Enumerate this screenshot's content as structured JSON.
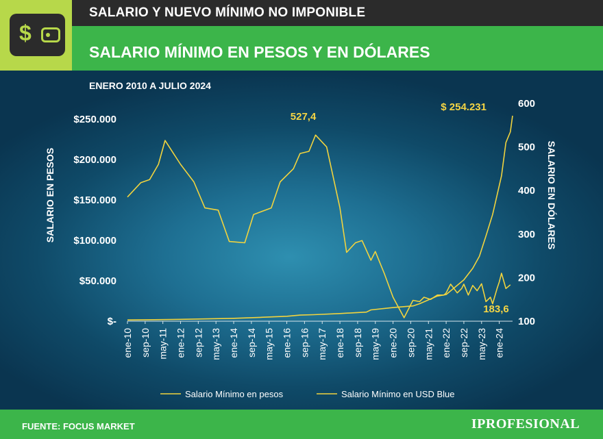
{
  "header": {
    "top_title": "SALARIO Y NUEVO MÍNIMO NO IMPONIBLE",
    "main_title": "SALARIO MÍNIMO EN PESOS Y EN DÓLARES",
    "subtitle": "ENERO 2010 A JULIO 2024",
    "icon": "wallet-dollar-icon",
    "icon_symbol": "$"
  },
  "footer": {
    "source": "FUENTE: FOCUS MARKET",
    "brand": "IPROFESIONAL"
  },
  "colors": {
    "line": "#f2d43e",
    "green_bar": "#3cb54a",
    "dark_bar": "#2b2b2b",
    "logo_bg": "#b7d84a"
  },
  "chart_data": {
    "type": "line",
    "x_tick_labels": [
      "ene-10",
      "sep-10",
      "may-11",
      "ene-12",
      "sep-12",
      "may-13",
      "ene-14",
      "sep-14",
      "may-15",
      "ene-16",
      "sep-16",
      "may-17",
      "ene-18",
      "sep-18",
      "may-19",
      "ene-20",
      "sep-20",
      "may-21",
      "ene-22",
      "sep-22",
      "may-23",
      "ene-24"
    ],
    "left_axis": {
      "label": "SALARIO EN PESOS",
      "ylim": [
        0,
        250000
      ],
      "tick_values": [
        0,
        50000,
        100000,
        150000,
        200000,
        250000
      ],
      "tick_labels": [
        "$-",
        "$50.000",
        "$100.000",
        "$150.000",
        "$200.000",
        "$250.000"
      ]
    },
    "right_axis": {
      "label": "SALARIO EN DÓLARES",
      "ylim": [
        100,
        600
      ],
      "tick_values": [
        100,
        200,
        300,
        400,
        500,
        600
      ],
      "tick_labels": [
        "100",
        "200",
        "300",
        "400",
        "500",
        "600"
      ]
    },
    "series": [
      {
        "name": "Salario Mínimo en pesos",
        "axis": "left",
        "points": [
          [
            "2010-01",
            1500
          ],
          [
            "2011-01",
            1840
          ],
          [
            "2012-01",
            2300
          ],
          [
            "2013-01",
            2875
          ],
          [
            "2014-01",
            3600
          ],
          [
            "2015-01",
            4716
          ],
          [
            "2016-01",
            6060
          ],
          [
            "2016-07",
            7560
          ],
          [
            "2017-01",
            8060
          ],
          [
            "2018-01",
            9500
          ],
          [
            "2019-01",
            11300
          ],
          [
            "2019-03",
            14000
          ],
          [
            "2020-01",
            16875
          ],
          [
            "2020-10",
            18900
          ],
          [
            "2021-01",
            21600
          ],
          [
            "2021-09",
            31104
          ],
          [
            "2022-01",
            33000
          ],
          [
            "2022-09",
            51200
          ],
          [
            "2023-01",
            65427
          ],
          [
            "2023-04",
            80340
          ],
          [
            "2023-07",
            105500
          ],
          [
            "2023-10",
            132000
          ],
          [
            "2023-12",
            156000
          ],
          [
            "2024-02",
            180000
          ],
          [
            "2024-04",
            221000
          ],
          [
            "2024-06",
            234315
          ],
          [
            "2024-07",
            254231
          ]
        ]
      },
      {
        "name": "Salario Mínimo en USD Blue",
        "axis": "right",
        "points": [
          [
            "2010-01",
            385
          ],
          [
            "2010-07",
            418
          ],
          [
            "2010-11",
            425
          ],
          [
            "2011-03",
            460
          ],
          [
            "2011-06",
            515
          ],
          [
            "2012-01",
            460
          ],
          [
            "2012-07",
            420
          ],
          [
            "2012-12",
            360
          ],
          [
            "2013-06",
            355
          ],
          [
            "2013-11",
            283
          ],
          [
            "2014-06",
            280
          ],
          [
            "2014-10",
            345
          ],
          [
            "2015-06",
            360
          ],
          [
            "2015-10",
            420
          ],
          [
            "2016-04",
            450
          ],
          [
            "2016-07",
            485
          ],
          [
            "2016-11",
            490
          ],
          [
            "2017-02",
            527.4
          ],
          [
            "2017-07",
            500
          ],
          [
            "2018-01",
            360
          ],
          [
            "2018-04",
            258
          ],
          [
            "2018-08",
            280
          ],
          [
            "2018-11",
            285
          ],
          [
            "2019-03",
            240
          ],
          [
            "2019-05",
            260
          ],
          [
            "2019-09",
            210
          ],
          [
            "2020-01",
            155
          ],
          [
            "2020-06",
            108
          ],
          [
            "2020-10",
            148
          ],
          [
            "2021-01",
            145
          ],
          [
            "2021-03",
            155
          ],
          [
            "2021-06",
            150
          ],
          [
            "2021-09",
            160
          ],
          [
            "2021-12",
            160
          ],
          [
            "2022-01",
            165
          ],
          [
            "2022-03",
            185
          ],
          [
            "2022-06",
            165
          ],
          [
            "2022-08",
            175
          ],
          [
            "2022-09",
            185
          ],
          [
            "2022-11",
            160
          ],
          [
            "2023-01",
            182
          ],
          [
            "2023-03",
            170
          ],
          [
            "2023-05",
            186
          ],
          [
            "2023-07",
            145
          ],
          [
            "2023-09",
            155
          ],
          [
            "2023-10",
            140
          ],
          [
            "2023-12",
            175
          ],
          [
            "2024-01",
            190
          ],
          [
            "2024-02",
            210
          ],
          [
            "2024-04",
            175
          ],
          [
            "2024-06",
            183.6
          ]
        ]
      }
    ],
    "annotations": [
      {
        "text": "527,4",
        "series": 1,
        "x": "2017-02",
        "y": 527.4
      },
      {
        "text": "$ 254.231",
        "series": 0,
        "x": "2024-07",
        "y": 254231
      },
      {
        "text": "183,6",
        "series": 1,
        "x": "2024-06",
        "y": 183.6
      }
    ],
    "legend": "bottom"
  }
}
